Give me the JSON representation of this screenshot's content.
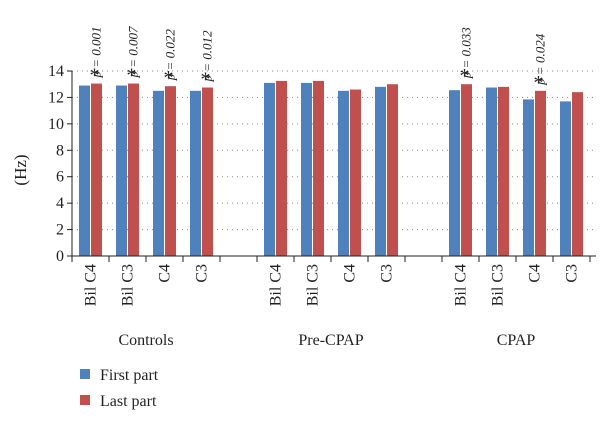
{
  "chart_data": {
    "type": "bar",
    "ylabel": "(Hz)",
    "ylim": [
      0,
      14
    ],
    "yticks": [
      0,
      2,
      4,
      6,
      8,
      10,
      12,
      14
    ],
    "grid": "dotted horizontal",
    "legend_position": "bottom-left",
    "colors": {
      "first": "#4f81bd",
      "last": "#c0504d",
      "text": "#231f20",
      "axis": "#231f20",
      "grid": "#888888"
    },
    "groups": [
      {
        "label": "Controls",
        "categories": [
          "Bil C4",
          "Bil C3",
          "C4",
          "C3"
        ]
      },
      {
        "label": "Pre-CPAP",
        "categories": [
          "Bil C4",
          "Bil C3",
          "C4",
          "C3"
        ]
      },
      {
        "label": "CPAP",
        "categories": [
          "Bil C4",
          "Bil C3",
          "C4",
          "C3"
        ]
      }
    ],
    "series": [
      {
        "name": "First part",
        "values": [
          12.9,
          12.9,
          12.5,
          12.5,
          13.1,
          13.1,
          12.5,
          12.8,
          12.55,
          12.75,
          11.85,
          11.7
        ]
      },
      {
        "name": "Last part",
        "values": [
          13.05,
          13.05,
          12.85,
          12.75,
          13.25,
          13.25,
          12.6,
          13.0,
          13.0,
          12.8,
          12.5,
          12.4
        ]
      }
    ],
    "annotations": [
      {
        "index": 0,
        "marker": "*",
        "text": "p = 0.001"
      },
      {
        "index": 1,
        "marker": "*",
        "text": "p = 0.007"
      },
      {
        "index": 2,
        "marker": "*",
        "text": "p = 0.022"
      },
      {
        "index": 3,
        "marker": "*",
        "text": "p = 0.012"
      },
      {
        "index": 8,
        "marker": "*",
        "text": "p = 0.033"
      },
      {
        "index": 10,
        "marker": "*",
        "text": "p = 0.024"
      }
    ]
  }
}
